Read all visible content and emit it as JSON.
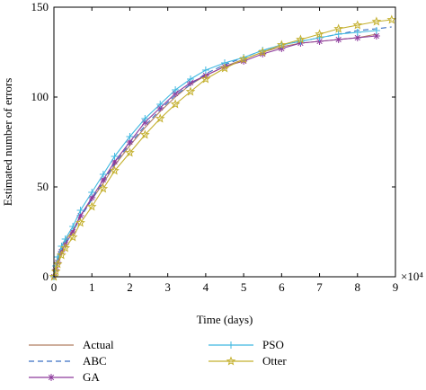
{
  "chart_data": {
    "type": "line",
    "xlabel": "Time (days)",
    "ylabel": "Estimated number of errors",
    "x_multiplier": "×10⁴",
    "xlim": [
      0,
      9
    ],
    "ylim": [
      0,
      150
    ],
    "xticks": [
      0,
      1,
      2,
      3,
      4,
      5,
      6,
      7,
      8,
      9
    ],
    "yticks": [
      0,
      50,
      100,
      150
    ],
    "grid": false,
    "legend_position": "bottom",
    "series": [
      {
        "name": "Actual",
        "color": "#b07d62",
        "dash": "",
        "marker": "none",
        "x": [
          0,
          0.05,
          0.1,
          0.2,
          0.3,
          0.5,
          0.7,
          1.0,
          1.3,
          1.6,
          2.0,
          2.4,
          2.8,
          3.2,
          3.6,
          4.0,
          4.5,
          5.0,
          5.5,
          6.0,
          6.5,
          7.0,
          7.5,
          8.0,
          8.5
        ],
        "y": [
          0,
          5,
          12,
          17,
          20,
          26,
          34,
          43,
          52,
          62,
          73,
          83,
          92,
          100,
          107,
          112,
          117,
          121,
          125,
          128,
          130,
          131,
          132,
          133,
          135
        ]
      },
      {
        "name": "ABC",
        "color": "#3a6fc4",
        "dash": "6,4",
        "marker": "none",
        "x": [
          0,
          0.05,
          0.1,
          0.2,
          0.3,
          0.5,
          0.7,
          1.0,
          1.3,
          1.6,
          2.0,
          2.4,
          2.8,
          3.2,
          3.6,
          4.0,
          4.5,
          5.0,
          5.5,
          6.0,
          6.5,
          7.0,
          7.5,
          8.0,
          8.5,
          8.9
        ],
        "y": [
          0,
          4,
          9,
          15,
          19,
          25,
          33,
          43,
          53,
          63,
          74,
          84,
          93,
          101,
          107,
          113,
          118,
          122,
          126,
          129,
          131,
          133,
          135,
          137,
          138,
          139
        ]
      },
      {
        "name": "GA",
        "color": "#8d3a9c",
        "dash": "",
        "marker": "asterisk",
        "x": [
          0,
          0.05,
          0.1,
          0.2,
          0.3,
          0.5,
          0.7,
          1.0,
          1.3,
          1.6,
          2.0,
          2.4,
          2.8,
          3.2,
          3.6,
          4.0,
          4.5,
          5.0,
          5.5,
          6.0,
          6.5,
          7.0,
          7.5,
          8.0,
          8.5
        ],
        "y": [
          0,
          4,
          8,
          14,
          18,
          25,
          34,
          44,
          54,
          64,
          75,
          86,
          94,
          102,
          108,
          112,
          117,
          120,
          124,
          127,
          130,
          131,
          132,
          133,
          134
        ]
      },
      {
        "name": "PSO",
        "color": "#3fb8e0",
        "dash": "",
        "marker": "plus",
        "x": [
          0,
          0.05,
          0.1,
          0.2,
          0.3,
          0.5,
          0.7,
          1.0,
          1.3,
          1.6,
          2.0,
          2.4,
          2.8,
          3.2,
          3.6,
          4.0,
          4.5,
          5.0,
          5.5,
          6.0,
          6.5,
          7.0,
          7.5,
          8.0,
          8.5
        ],
        "y": [
          0,
          6,
          11,
          17,
          21,
          28,
          37,
          47,
          57,
          67,
          78,
          88,
          96,
          104,
          110,
          115,
          119,
          122,
          126,
          129,
          131,
          133,
          135,
          136,
          137
        ]
      },
      {
        "name": "Otter",
        "color": "#c4b02e",
        "dash": "",
        "marker": "star",
        "x": [
          0,
          0.05,
          0.1,
          0.2,
          0.3,
          0.5,
          0.7,
          1.0,
          1.3,
          1.6,
          2.0,
          2.4,
          2.8,
          3.2,
          3.6,
          4.0,
          4.5,
          5.0,
          5.5,
          6.0,
          6.5,
          7.0,
          7.5,
          8.0,
          8.5,
          8.9
        ],
        "y": [
          0,
          3,
          7,
          12,
          16,
          22,
          30,
          39,
          49,
          59,
          69,
          79,
          88,
          96,
          103,
          110,
          116,
          121,
          125,
          129,
          132,
          135,
          138,
          140,
          142,
          143
        ]
      }
    ]
  }
}
